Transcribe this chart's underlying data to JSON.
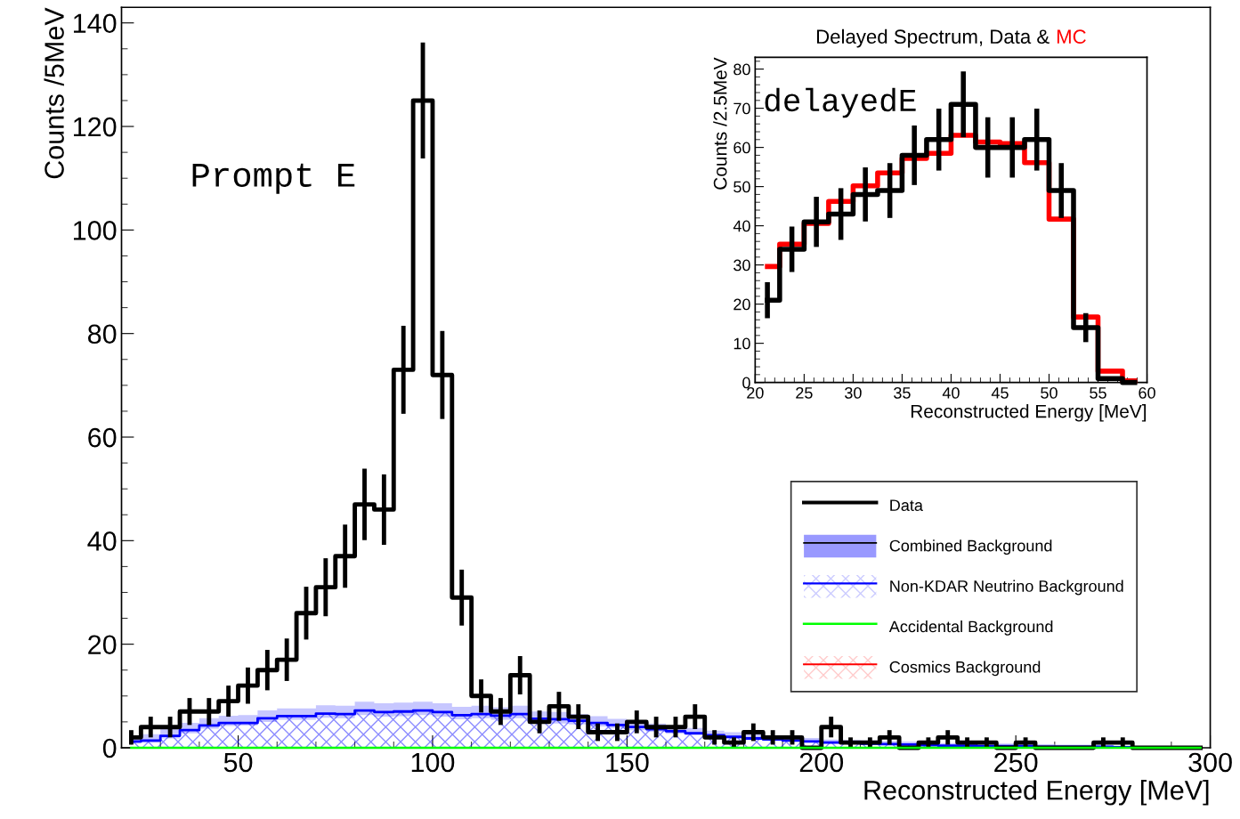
{
  "chart_data": [
    {
      "type": "step",
      "xlabel": "Reconstructed Energy [MeV]",
      "ylabel": "Counts /5MeV",
      "x": [
        22.5,
        27.5,
        32.5,
        37.5,
        42.5,
        47.5,
        52.5,
        57.5,
        62.5,
        67.5,
        72.5,
        77.5,
        82.5,
        87.5,
        92.5,
        97.5,
        102.5,
        107.5,
        112.5,
        117.5,
        122.5,
        127.5,
        132.5,
        137.5,
        142.5,
        147.5,
        152.5,
        157.5,
        162.5,
        167.5,
        172.5,
        177.5,
        182.5,
        187.5,
        192.5,
        197.5,
        202.5,
        207.5,
        212.5,
        217.5,
        222.5,
        227.5,
        232.5,
        237.5,
        242.5,
        247.5,
        252.5,
        257.5,
        262.5,
        267.5,
        272.5,
        277.5,
        282.5,
        287.5,
        292.5,
        297.5
      ],
      "series": [
        {
          "name": "Data",
          "type": "step",
          "color": "#000000",
          "values": [
            2,
            4,
            4,
            7,
            7,
            9,
            12,
            15,
            17,
            26,
            31,
            37,
            47,
            46,
            73,
            125,
            72,
            29,
            10,
            7,
            14,
            5,
            8,
            6,
            3,
            3,
            5,
            4,
            4,
            6,
            2,
            1,
            3,
            2,
            2,
            0,
            4,
            1,
            1,
            2,
            0,
            1,
            2,
            1,
            1,
            0,
            1,
            0,
            0,
            0,
            1,
            1,
            0,
            0,
            0,
            0
          ],
          "errors": [
            1.4,
            2,
            2,
            2.6,
            2.6,
            3,
            3.5,
            3.9,
            4.1,
            5.1,
            5.6,
            6.1,
            6.9,
            6.8,
            8.5,
            11.2,
            8.5,
            5.4,
            3.2,
            2.6,
            3.7,
            2.2,
            2.8,
            2.4,
            1.7,
            1.7,
            2.2,
            2,
            2,
            2.4,
            1.4,
            1,
            1.7,
            1.4,
            1.4,
            null,
            2,
            1,
            1,
            1.4,
            null,
            1,
            1.4,
            1,
            1,
            null,
            1,
            null,
            null,
            null,
            1,
            1,
            null,
            null,
            null,
            null
          ]
        },
        {
          "name": "Combined Background",
          "type": "step",
          "color": "#9999ff",
          "values": [
            null,
            null,
            null,
            null,
            null,
            null,
            null,
            null,
            null,
            null,
            null,
            null,
            null,
            null,
            null,
            null,
            null,
            null,
            null,
            null,
            null,
            null,
            null,
            null,
            null,
            null,
            null,
            null,
            null,
            null,
            null,
            null,
            null,
            null,
            null,
            null,
            null,
            null,
            null,
            null,
            null,
            null,
            null,
            null,
            null,
            null,
            null,
            null,
            null,
            null,
            null,
            null,
            null,
            null,
            null,
            null
          ],
          "lower": [
            0.8,
            1,
            1.8,
            2.8,
            3.7,
            4.2,
            4.3,
            5,
            5.4,
            5.4,
            5.8,
            5.7,
            6.3,
            6,
            6.1,
            6.3,
            6,
            5.5,
            5.7,
            5.4,
            5.7,
            4.8,
            4.7,
            4.5,
            4.1,
            3.8,
            3.4,
            3.1,
            2.7,
            2.4,
            2.1,
            1.8,
            1.6,
            1.4,
            1.3,
            1.1,
            1,
            0.9,
            0.8,
            0.7,
            0.6,
            0.6,
            0.5,
            0.5,
            0.4,
            0.4,
            0.3,
            0.3,
            0.3,
            0.2,
            0.2,
            0.2,
            0.2,
            0.2,
            0.2,
            0.2
          ],
          "upper": [
            2.2,
            2.6,
            3.6,
            4.8,
            5.7,
            6.2,
            6.3,
            7.2,
            7.6,
            7.6,
            8.2,
            8.1,
            8.9,
            8.6,
            8.7,
            8.9,
            8.6,
            7.9,
            8.1,
            7.8,
            8.1,
            7,
            6.9,
            6.5,
            6.1,
            5.6,
            5.2,
            4.7,
            4.3,
            3.8,
            3.3,
            3,
            2.6,
            2.4,
            2.1,
            1.9,
            1.6,
            1.5,
            1.4,
            1.3,
            1.2,
            1,
            0.9,
            0.9,
            0.8,
            0.8,
            0.7,
            0.7,
            0.6,
            0.6,
            0.6,
            0.4,
            0.4,
            0.4,
            0.4,
            0.4
          ]
        },
        {
          "name": "Non-KDAR Neutrino Background",
          "type": "area",
          "color": "#0000ff",
          "values": [
            1.2,
            1.4,
            2.3,
            3.4,
            4.3,
            4.8,
            4.8,
            5.7,
            6.1,
            6.1,
            6.6,
            6.5,
            7.2,
            6.9,
            7,
            7.2,
            6.9,
            6.3,
            6.5,
            6.2,
            6.5,
            5.6,
            5.5,
            5.2,
            4.8,
            4.4,
            4,
            3.6,
            3.2,
            2.8,
            2.4,
            2.1,
            1.8,
            1.6,
            1.4,
            1.2,
            1,
            0.9,
            0.8,
            0.7,
            0.6,
            0.5,
            0.4,
            0.4,
            0.3,
            0.3,
            0.3,
            0.2,
            0.2,
            0.2,
            0.2,
            0.1,
            0.1,
            0.1,
            0.1,
            0.1
          ]
        },
        {
          "name": "Accidental Background",
          "type": "step",
          "color": "#00ff00",
          "values": [
            0,
            0,
            0,
            0,
            0,
            0,
            0,
            0,
            0,
            0,
            0,
            0,
            0,
            0,
            0,
            0,
            0,
            0,
            0,
            0,
            0,
            0,
            0,
            0,
            0,
            0,
            0,
            0,
            0,
            0,
            0,
            0,
            0,
            0,
            0,
            0,
            0,
            0,
            0,
            0,
            0,
            0,
            0,
            0,
            0,
            0,
            0,
            0,
            0,
            0,
            0,
            0,
            0,
            0,
            0,
            0
          ]
        },
        {
          "name": "Cosmics Background",
          "type": "area",
          "color": "#ff0000",
          "values": [
            null,
            null,
            null,
            null,
            null,
            null,
            null,
            null,
            null,
            null,
            null,
            null,
            null,
            null,
            null,
            null,
            null,
            null,
            null,
            null,
            null,
            null,
            null,
            null,
            null,
            null,
            null,
            null,
            null,
            null,
            null,
            null,
            null,
            null,
            null,
            null,
            null,
            null,
            null,
            null,
            null,
            null,
            null,
            null,
            null,
            null,
            null,
            null,
            null,
            null,
            null,
            null,
            null,
            null,
            null,
            null
          ]
        }
      ],
      "xlim": [
        20,
        300
      ],
      "xticks": [
        50,
        100,
        150,
        200,
        250,
        300
      ],
      "ylim": [
        0,
        143
      ],
      "yticks": [
        0,
        20,
        40,
        60,
        80,
        100,
        120,
        140
      ],
      "legend": "bottom right",
      "annotations": [
        "Prompt E"
      ]
    },
    {
      "type": "step",
      "title": "Delayed Spectrum, Data & MC",
      "xlabel": "Reconstructed Energy [MeV]",
      "ylabel": "Counts /2.5MeV",
      "x": [
        21.25,
        23.75,
        26.25,
        28.75,
        31.25,
        33.75,
        36.25,
        38.75,
        41.25,
        43.75,
        46.25,
        48.75,
        51.25,
        53.75,
        56.25,
        58.75
      ],
      "series": [
        {
          "type": "step",
          "color": "#000000",
          "values": [
            21,
            34,
            41,
            43,
            48,
            49,
            58,
            62,
            71,
            60,
            60,
            62,
            49,
            14,
            1,
            0
          ],
          "errors": [
            4.6,
            5.8,
            6.4,
            6.6,
            6.9,
            7,
            7.6,
            7.9,
            8.4,
            7.7,
            7.7,
            7.9,
            7,
            3.7,
            null,
            null
          ]
        },
        {
          "type": "step",
          "color": "#ff0000",
          "values": [
            29.6,
            35.3,
            40.6,
            46.2,
            50.2,
            53.5,
            57.2,
            58.5,
            63.1,
            61.4,
            61,
            56.1,
            41.7,
            16.7,
            2.9,
            0.4
          ]
        }
      ],
      "xlim": [
        20,
        60
      ],
      "xticks": [
        20,
        25,
        30,
        35,
        40,
        45,
        50,
        55,
        60
      ],
      "ylim": [
        0,
        83
      ],
      "yticks": [
        0,
        10,
        20,
        30,
        40,
        50,
        60,
        70,
        80
      ],
      "annotations": [
        "delayedE"
      ]
    }
  ]
}
